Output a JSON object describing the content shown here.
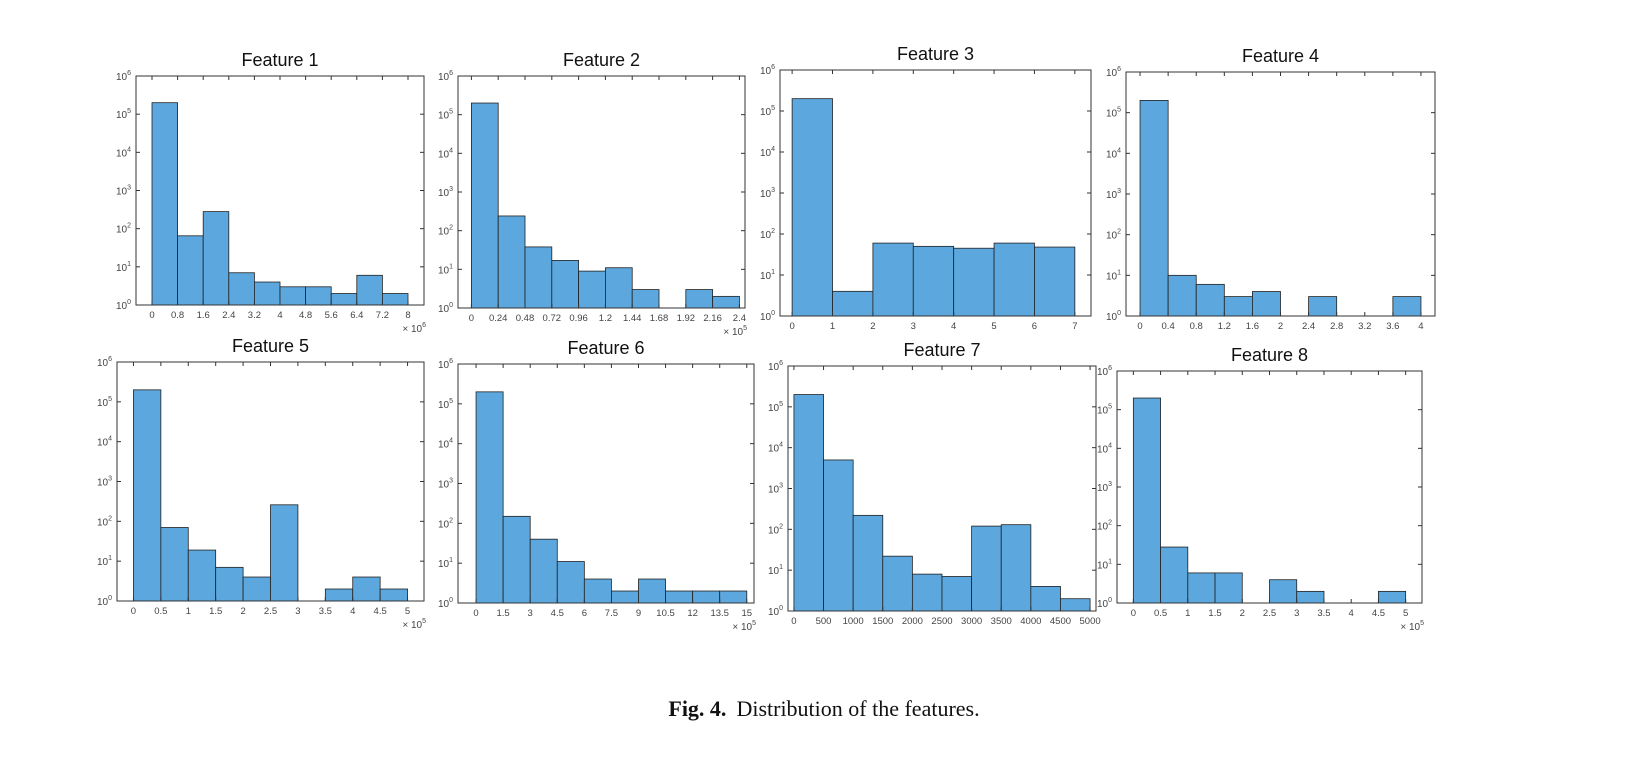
{
  "caption": {
    "label": "Fig. 4.",
    "text": "Distribution of the features."
  },
  "style": {
    "bar_fill": "#5ca7dd",
    "bar_stroke": "#222222",
    "axis_color": "#333333",
    "text_color": "#444444"
  },
  "chart_data": [
    {
      "type": "bar",
      "title": "Feature 1",
      "yscale": "log",
      "ylim": [
        1,
        1000000
      ],
      "yticks": [
        "10^0",
        "10^1",
        "10^2",
        "10^3",
        "10^4",
        "10^5",
        "10^6"
      ],
      "xlim": [
        -0.5,
        8.5
      ],
      "xticks": [
        0,
        0.8,
        1.6,
        2.4,
        3.2,
        4,
        4.8,
        5.6,
        6.4,
        7.2,
        8
      ],
      "xtick_labels": [
        "0",
        "0.8",
        "1.6",
        "2.4",
        "3.2",
        "4",
        "4.8",
        "5.6",
        "6.4",
        "7.2",
        "8"
      ],
      "multiplier": "× 10^6",
      "bins": [
        [
          0,
          0.8
        ],
        [
          0.8,
          1.6
        ],
        [
          1.6,
          2.4
        ],
        [
          2.4,
          3.2
        ],
        [
          3.2,
          4
        ],
        [
          4,
          4.8
        ],
        [
          4.8,
          5.6
        ],
        [
          5.6,
          6.4
        ],
        [
          6.4,
          7.2
        ],
        [
          7.2,
          8
        ]
      ],
      "values": [
        200000,
        65,
        280,
        7,
        4,
        3,
        3,
        2,
        6,
        2
      ]
    },
    {
      "type": "bar",
      "title": "Feature 2",
      "yscale": "log",
      "ylim": [
        1,
        1000000
      ],
      "yticks": [
        "10^0",
        "10^1",
        "10^2",
        "10^3",
        "10^4",
        "10^5",
        "10^6"
      ],
      "xlim": [
        -0.12,
        2.45
      ],
      "xticks": [
        0,
        0.24,
        0.48,
        0.72,
        0.96,
        1.2,
        1.44,
        1.68,
        1.92,
        2.16,
        2.4
      ],
      "xtick_labels": [
        "0",
        "0.24",
        "0.48",
        "0.72",
        "0.96",
        "1.2",
        "1.44",
        "1.68",
        "1.92",
        "2.16",
        "2.4"
      ],
      "multiplier": "× 10^5",
      "bins": [
        [
          0,
          0.24
        ],
        [
          0.24,
          0.48
        ],
        [
          0.48,
          0.72
        ],
        [
          0.72,
          0.96
        ],
        [
          0.96,
          1.2
        ],
        [
          1.2,
          1.44
        ],
        [
          1.44,
          1.68
        ],
        [
          1.68,
          1.92
        ],
        [
          1.92,
          2.16
        ],
        [
          2.16,
          2.4
        ]
      ],
      "values": [
        200000,
        240,
        38,
        17,
        9,
        11,
        3,
        null,
        3,
        2
      ]
    },
    {
      "type": "bar",
      "title": "Feature 3",
      "yscale": "log",
      "ylim": [
        1,
        1000000
      ],
      "yticks": [
        "10^0",
        "10^1",
        "10^2",
        "10^3",
        "10^4",
        "10^5",
        "10^6"
      ],
      "xlim": [
        -0.3,
        7.4
      ],
      "xticks": [
        0,
        1,
        2,
        3,
        4,
        5,
        6,
        7
      ],
      "xtick_labels": [
        "0",
        "1",
        "2",
        "3",
        "4",
        "5",
        "6",
        "7"
      ],
      "multiplier": "",
      "bins": [
        [
          0,
          1
        ],
        [
          1,
          2
        ],
        [
          2,
          3
        ],
        [
          3,
          4
        ],
        [
          4,
          5
        ],
        [
          5,
          6
        ],
        [
          6,
          7
        ]
      ],
      "values": [
        200000,
        4,
        60,
        50,
        45,
        60,
        48
      ]
    },
    {
      "type": "bar",
      "title": "Feature 4",
      "yscale": "log",
      "ylim": [
        1,
        1000000
      ],
      "yticks": [
        "10^0",
        "10^1",
        "10^2",
        "10^3",
        "10^4",
        "10^5",
        "10^6"
      ],
      "xlim": [
        -0.2,
        4.2
      ],
      "xticks": [
        0,
        0.4,
        0.8,
        1.2,
        1.6,
        2,
        2.4,
        2.8,
        3.2,
        3.6,
        4
      ],
      "xtick_labels": [
        "0",
        "0.4",
        "0.8",
        "1.2",
        "1.6",
        "2",
        "2.4",
        "2.8",
        "3.2",
        "3.6",
        "4"
      ],
      "multiplier": "",
      "bins": [
        [
          0,
          0.4
        ],
        [
          0.4,
          0.8
        ],
        [
          0.8,
          1.2
        ],
        [
          1.2,
          1.6
        ],
        [
          1.6,
          2
        ],
        [
          2,
          2.4
        ],
        [
          2.4,
          2.8
        ],
        [
          2.8,
          3.2
        ],
        [
          3.2,
          3.6
        ],
        [
          3.6,
          4
        ]
      ],
      "values": [
        200000,
        10,
        6,
        3,
        4,
        null,
        3,
        null,
        null,
        3
      ]
    },
    {
      "type": "bar",
      "title": "Feature 5",
      "yscale": "log",
      "ylim": [
        1,
        1000000
      ],
      "yticks": [
        "10^0",
        "10^1",
        "10^2",
        "10^3",
        "10^4",
        "10^5",
        "10^6"
      ],
      "xlim": [
        -0.3,
        5.3
      ],
      "xticks": [
        0,
        0.5,
        1,
        1.5,
        2,
        2.5,
        3,
        3.5,
        4,
        4.5,
        5
      ],
      "xtick_labels": [
        "0",
        "0.5",
        "1",
        "1.5",
        "2",
        "2.5",
        "3",
        "3.5",
        "4",
        "4.5",
        "5"
      ],
      "multiplier": "× 10^5",
      "bins": [
        [
          0,
          0.5
        ],
        [
          0.5,
          1
        ],
        [
          1,
          1.5
        ],
        [
          1.5,
          2
        ],
        [
          2,
          2.5
        ],
        [
          2.5,
          3
        ],
        [
          3,
          3.5
        ],
        [
          3.5,
          4
        ],
        [
          4,
          4.5
        ],
        [
          4.5,
          5
        ]
      ],
      "values": [
        200000,
        70,
        19,
        7,
        4,
        260,
        null,
        2,
        4,
        2
      ]
    },
    {
      "type": "bar",
      "title": "Feature 6",
      "yscale": "log",
      "ylim": [
        1,
        1000000
      ],
      "yticks": [
        "10^0",
        "10^1",
        "10^2",
        "10^3",
        "10^4",
        "10^5",
        "10^6"
      ],
      "xlim": [
        -1.0,
        15.4
      ],
      "xticks": [
        0,
        1.5,
        3,
        4.5,
        6,
        7.5,
        9,
        10.5,
        12,
        13.5,
        15
      ],
      "xtick_labels": [
        "0",
        "1.5",
        "3",
        "4.5",
        "6",
        "7.5",
        "9",
        "10.5",
        "12",
        "13.5",
        "15"
      ],
      "multiplier": "× 10^5",
      "bins": [
        [
          0,
          1.5
        ],
        [
          1.5,
          3
        ],
        [
          3,
          4.5
        ],
        [
          4.5,
          6
        ],
        [
          6,
          7.5
        ],
        [
          7.5,
          9
        ],
        [
          9,
          10.5
        ],
        [
          10.5,
          12
        ],
        [
          12,
          13.5
        ],
        [
          13.5,
          15
        ]
      ],
      "values": [
        200000,
        150,
        40,
        11,
        4,
        2,
        4,
        2,
        2,
        2
      ]
    },
    {
      "type": "bar",
      "title": "Feature 7",
      "yscale": "log",
      "ylim": [
        1,
        1000000
      ],
      "yticks": [
        "10^0",
        "10^1",
        "10^2",
        "10^3",
        "10^4",
        "10^5",
        "10^6"
      ],
      "xlim": [
        -100,
        5100
      ],
      "xticks": [
        0,
        500,
        1000,
        1500,
        2000,
        2500,
        3000,
        3500,
        4000,
        4500,
        5000
      ],
      "xtick_labels": [
        "0",
        "500",
        "1000",
        "1500",
        "2000",
        "2500",
        "3000",
        "3500",
        "4000",
        "4500",
        "5000"
      ],
      "multiplier": "",
      "bins": [
        [
          0,
          500
        ],
        [
          500,
          1000
        ],
        [
          1000,
          1500
        ],
        [
          1500,
          2000
        ],
        [
          2000,
          2500
        ],
        [
          2500,
          3000
        ],
        [
          3000,
          3500
        ],
        [
          3500,
          4000
        ],
        [
          4000,
          4500
        ],
        [
          4500,
          5000
        ]
      ],
      "values": [
        200000,
        5000,
        220,
        22,
        8,
        7,
        120,
        130,
        4,
        2
      ]
    },
    {
      "type": "bar",
      "title": "Feature 8",
      "yscale": "log",
      "ylim": [
        1,
        1000000
      ],
      "yticks": [
        "10^0",
        "10^1",
        "10^2",
        "10^3",
        "10^4",
        "10^5",
        "10^6"
      ],
      "xlim": [
        -0.3,
        5.3
      ],
      "xticks": [
        0,
        0.5,
        1,
        1.5,
        2,
        2.5,
        3,
        3.5,
        4,
        4.5,
        5
      ],
      "xtick_labels": [
        "0",
        "0.5",
        "1",
        "1.5",
        "2",
        "2.5",
        "3",
        "3.5",
        "4",
        "4.5",
        "5"
      ],
      "multiplier": "× 10^5",
      "bins": [
        [
          0,
          0.5
        ],
        [
          0.5,
          1
        ],
        [
          1,
          1.5
        ],
        [
          1.5,
          2
        ],
        [
          2,
          2.5
        ],
        [
          2.5,
          3
        ],
        [
          3,
          3.5
        ],
        [
          3.5,
          4
        ],
        [
          4,
          4.5
        ],
        [
          4.5,
          5
        ]
      ],
      "values": [
        200000,
        28,
        6,
        6,
        null,
        4,
        2,
        null,
        null,
        2
      ]
    }
  ]
}
